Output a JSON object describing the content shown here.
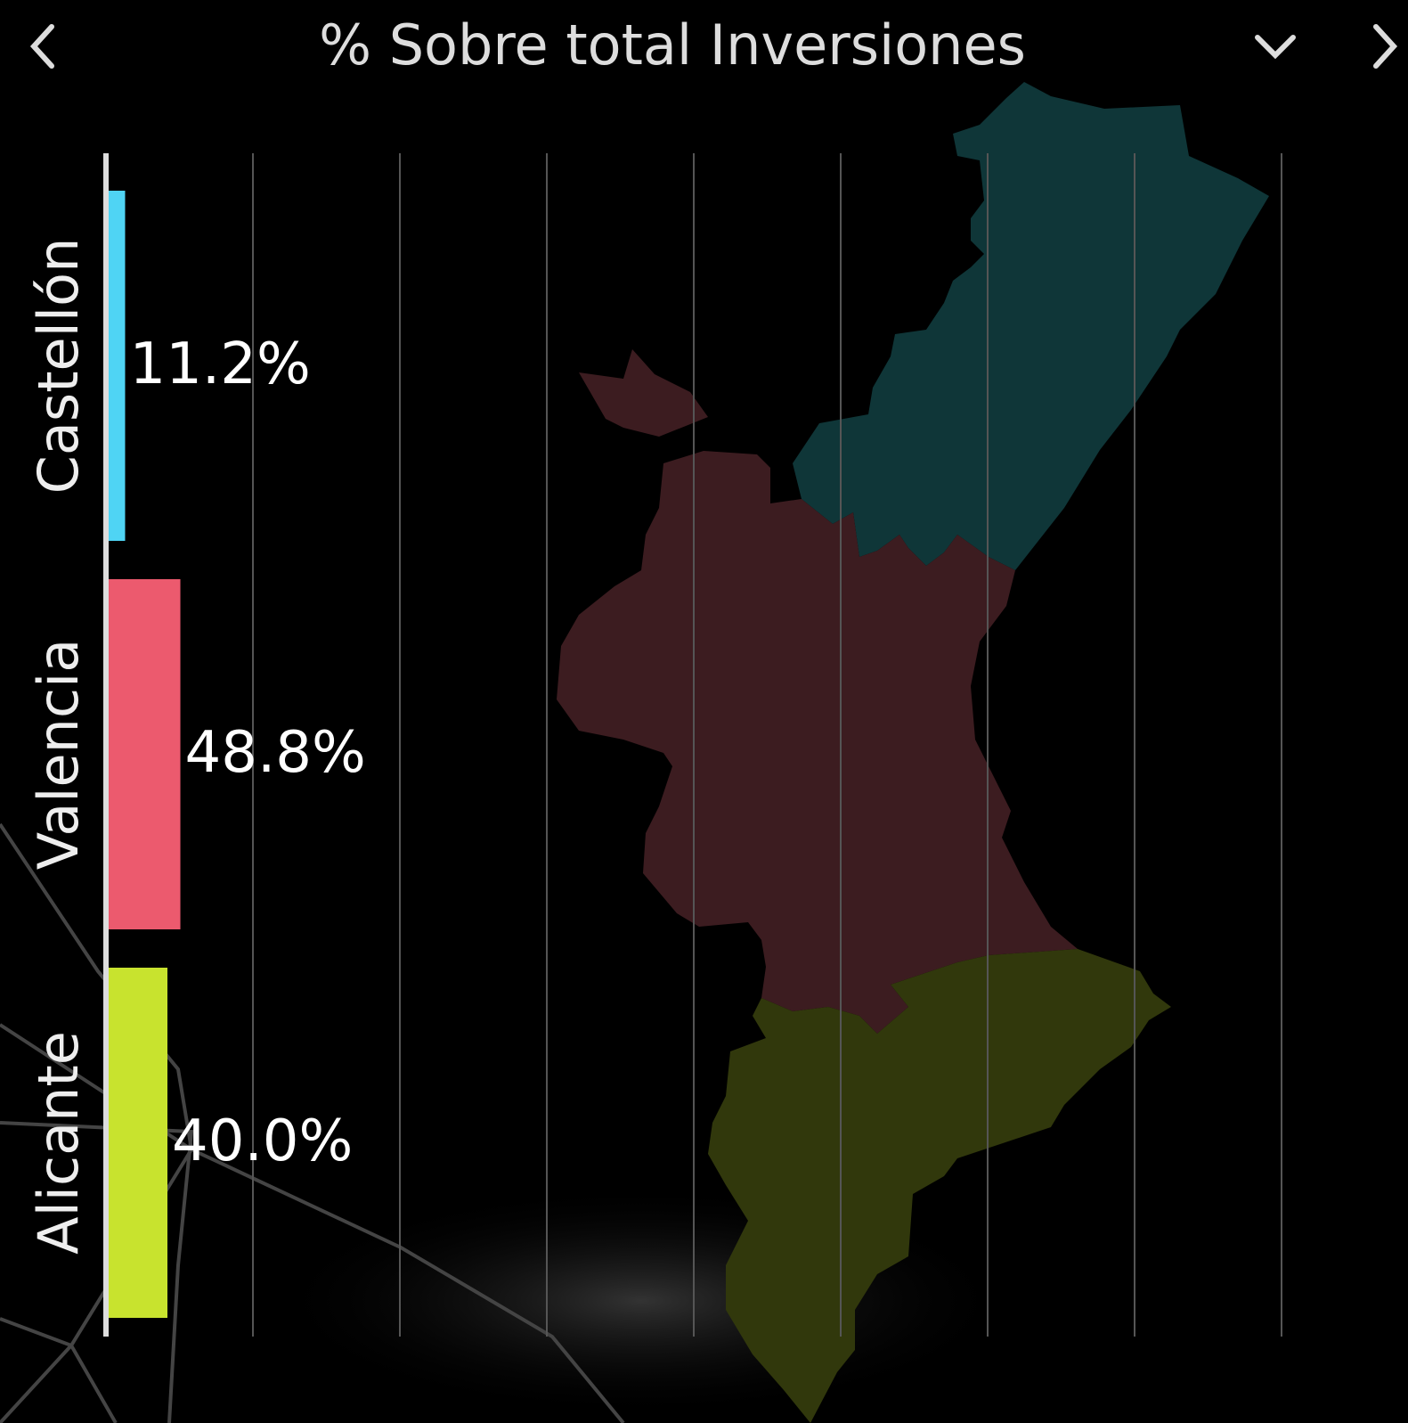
{
  "chart_data": {
    "type": "bar",
    "orientation": "horizontal",
    "title": "% Sobre total Inversiones",
    "categories": [
      "Castellón",
      "Valencia",
      "Alicante"
    ],
    "values": [
      11.2,
      48.8,
      40.0
    ],
    "value_labels": [
      "11.2%",
      "48.8%",
      "40.0%"
    ],
    "colors": [
      "#4fd4f4",
      "#ec5a6e",
      "#c8e32e"
    ],
    "xlim": [
      0,
      880
    ],
    "xticks": [
      0,
      100,
      200,
      300,
      400,
      500,
      600,
      700,
      800
    ],
    "grid": true
  }
}
